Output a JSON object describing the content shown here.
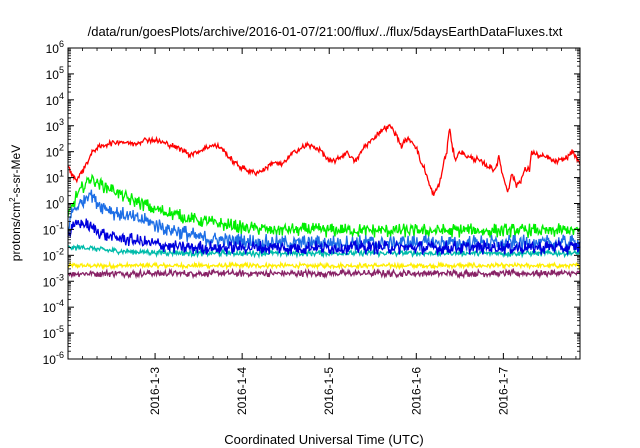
{
  "chart_data": {
    "type": "line",
    "title": "/data/run/goesPlots/archive/2016-01-07/21:00/flux/../flux/5daysEarthDataFluxes.txt",
    "xlabel": "Coordinated Universal Time (UTC)",
    "ylabel_main": "protons/cm",
    "ylabel_sup": "2",
    "ylabel_rest": "-s-sr-MeV",
    "yscale": "log",
    "ylim_exp": [
      -6,
      6
    ],
    "y_ticks": [
      {
        "base": "10",
        "exp": "-6"
      },
      {
        "base": "10",
        "exp": "-5"
      },
      {
        "base": "10",
        "exp": "-4"
      },
      {
        "base": "10",
        "exp": "-3"
      },
      {
        "base": "10",
        "exp": "-2"
      },
      {
        "base": "10",
        "exp": "-1"
      },
      {
        "base": "10",
        "exp": "0"
      },
      {
        "base": "10",
        "exp": "1"
      },
      {
        "base": "10",
        "exp": "2"
      },
      {
        "base": "10",
        "exp": "3"
      },
      {
        "base": "10",
        "exp": "4"
      },
      {
        "base": "10",
        "exp": "5"
      },
      {
        "base": "10",
        "exp": "6"
      }
    ],
    "xlim_days": [
      2.0,
      7.88
    ],
    "x_ticks": [
      {
        "label": "2016-1-3",
        "day": 3
      },
      {
        "label": "2016-1-4",
        "day": 4
      },
      {
        "label": "2016-1-5",
        "day": 5
      },
      {
        "label": "2016-1-6",
        "day": 6
      },
      {
        "label": "2016-1-7",
        "day": 7
      }
    ],
    "grid": false,
    "series": [
      {
        "color": "#ff0000",
        "noise": 0.06,
        "points": [
          [
            2.0,
            30
          ],
          [
            2.05,
            12
          ],
          [
            2.1,
            8
          ],
          [
            2.2,
            30
          ],
          [
            2.3,
            120
          ],
          [
            2.45,
            200
          ],
          [
            2.6,
            250
          ],
          [
            2.75,
            200
          ],
          [
            2.9,
            300
          ],
          [
            3.05,
            250
          ],
          [
            3.25,
            150
          ],
          [
            3.4,
            80
          ],
          [
            3.5,
            100
          ],
          [
            3.65,
            180
          ],
          [
            3.75,
            150
          ],
          [
            3.85,
            60
          ],
          [
            3.95,
            30
          ],
          [
            4.05,
            20
          ],
          [
            4.15,
            15
          ],
          [
            4.25,
            20
          ],
          [
            4.35,
            40
          ],
          [
            4.45,
            30
          ],
          [
            4.6,
            100
          ],
          [
            4.75,
            180
          ],
          [
            4.9,
            120
          ],
          [
            5.0,
            40
          ],
          [
            5.1,
            50
          ],
          [
            5.2,
            100
          ],
          [
            5.3,
            40
          ],
          [
            5.4,
            150
          ],
          [
            5.5,
            300
          ],
          [
            5.6,
            700
          ],
          [
            5.7,
            1000
          ],
          [
            5.78,
            400
          ],
          [
            5.83,
            150
          ],
          [
            5.88,
            300
          ],
          [
            5.95,
            250
          ],
          [
            6.0,
            150
          ],
          [
            6.05,
            40
          ],
          [
            6.1,
            20
          ],
          [
            6.15,
            5
          ],
          [
            6.2,
            2
          ],
          [
            6.28,
            8
          ],
          [
            6.32,
            50
          ],
          [
            6.35,
            80
          ],
          [
            6.38,
            1000
          ],
          [
            6.41,
            150
          ],
          [
            6.45,
            50
          ],
          [
            6.5,
            100
          ],
          [
            6.6,
            60
          ],
          [
            6.7,
            50
          ],
          [
            6.8,
            30
          ],
          [
            6.9,
            20
          ],
          [
            6.95,
            60
          ],
          [
            7.0,
            10
          ],
          [
            7.05,
            3
          ],
          [
            7.1,
            15
          ],
          [
            7.15,
            5
          ],
          [
            7.2,
            8
          ],
          [
            7.25,
            20
          ],
          [
            7.3,
            20
          ],
          [
            7.32,
            100
          ],
          [
            7.4,
            70
          ],
          [
            7.5,
            60
          ],
          [
            7.6,
            40
          ],
          [
            7.7,
            50
          ],
          [
            7.8,
            100
          ],
          [
            7.88,
            30
          ]
        ]
      },
      {
        "color": "#00ee00",
        "noise": 0.14,
        "points": [
          [
            2.0,
            0.3
          ],
          [
            2.1,
            2
          ],
          [
            2.25,
            10
          ],
          [
            2.4,
            5
          ],
          [
            2.55,
            3
          ],
          [
            2.7,
            1.5
          ],
          [
            2.85,
            1
          ],
          [
            3.0,
            0.6
          ],
          [
            3.2,
            0.4
          ],
          [
            3.4,
            0.25
          ],
          [
            3.6,
            0.2
          ],
          [
            3.8,
            0.15
          ],
          [
            4.0,
            0.12
          ],
          [
            4.3,
            0.1
          ],
          [
            4.6,
            0.1
          ],
          [
            5.0,
            0.09
          ],
          [
            5.5,
            0.09
          ],
          [
            6.0,
            0.09
          ],
          [
            6.5,
            0.09
          ],
          [
            7.0,
            0.09
          ],
          [
            7.5,
            0.09
          ],
          [
            7.88,
            0.09
          ]
        ]
      },
      {
        "color": "#1e6fe6",
        "noise": 0.16,
        "points": [
          [
            2.0,
            0.1
          ],
          [
            2.05,
            0.5
          ],
          [
            2.15,
            1
          ],
          [
            2.25,
            3
          ],
          [
            2.35,
            1
          ],
          [
            2.5,
            0.5
          ],
          [
            2.7,
            0.3
          ],
          [
            2.9,
            0.2
          ],
          [
            3.1,
            0.12
          ],
          [
            3.3,
            0.08
          ],
          [
            3.5,
            0.05
          ],
          [
            3.7,
            0.04
          ],
          [
            4.0,
            0.035
          ],
          [
            4.5,
            0.03
          ],
          [
            5.0,
            0.03
          ],
          [
            5.5,
            0.03
          ],
          [
            6.0,
            0.03
          ],
          [
            6.5,
            0.03
          ],
          [
            7.0,
            0.03
          ],
          [
            7.5,
            0.03
          ],
          [
            7.88,
            0.03
          ]
        ]
      },
      {
        "color": "#0000dd",
        "noise": 0.14,
        "points": [
          [
            2.0,
            0.06
          ],
          [
            2.05,
            0.1
          ],
          [
            2.12,
            0.2
          ],
          [
            2.2,
            0.15
          ],
          [
            2.35,
            0.08
          ],
          [
            2.5,
            0.05
          ],
          [
            2.7,
            0.04
          ],
          [
            2.9,
            0.03
          ],
          [
            3.1,
            0.025
          ],
          [
            3.3,
            0.02
          ],
          [
            3.6,
            0.02
          ],
          [
            4.0,
            0.02
          ],
          [
            4.5,
            0.02
          ],
          [
            5.0,
            0.02
          ],
          [
            5.5,
            0.02
          ],
          [
            6.0,
            0.02
          ],
          [
            6.5,
            0.02
          ],
          [
            7.0,
            0.02
          ],
          [
            7.5,
            0.02
          ],
          [
            7.88,
            0.02
          ]
        ]
      },
      {
        "color": "#00bbaa",
        "noise": 0.06,
        "points": [
          [
            2.0,
            0.02
          ],
          [
            2.2,
            0.02
          ],
          [
            2.5,
            0.015
          ],
          [
            3.0,
            0.013
          ],
          [
            3.5,
            0.012
          ],
          [
            4.0,
            0.012
          ],
          [
            4.5,
            0.012
          ],
          [
            5.0,
            0.012
          ],
          [
            5.5,
            0.012
          ],
          [
            6.0,
            0.012
          ],
          [
            6.5,
            0.012
          ],
          [
            7.0,
            0.012
          ],
          [
            7.5,
            0.012
          ],
          [
            7.88,
            0.012
          ]
        ]
      },
      {
        "color": "#ffee00",
        "noise": 0.05,
        "points": [
          [
            2.0,
            0.004
          ],
          [
            3.0,
            0.004
          ],
          [
            4.0,
            0.004
          ],
          [
            5.0,
            0.004
          ],
          [
            6.0,
            0.004
          ],
          [
            7.0,
            0.004
          ],
          [
            7.88,
            0.004
          ]
        ]
      },
      {
        "color": "#882266",
        "noise": 0.07,
        "points": [
          [
            2.0,
            0.002
          ],
          [
            3.0,
            0.002
          ],
          [
            4.0,
            0.002
          ],
          [
            5.0,
            0.002
          ],
          [
            6.0,
            0.002
          ],
          [
            7.0,
            0.002
          ],
          [
            7.88,
            0.002
          ]
        ]
      }
    ]
  }
}
